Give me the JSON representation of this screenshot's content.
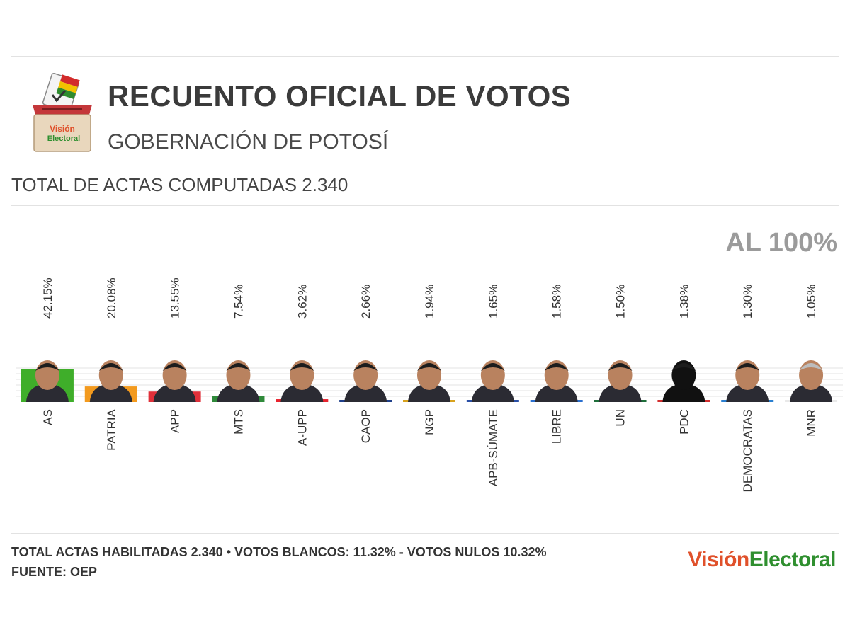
{
  "header": {
    "title": "RECUENTO OFICIAL DE VOTOS",
    "subtitle": "GOBERNACIÓN DE POTOSÍ",
    "actas": "TOTAL DE ACTAS COMPUTADAS 2.340",
    "pct_label": "AL 100%",
    "logo_text_1": "Visión",
    "logo_text_2": "Electoral"
  },
  "chart_data": {
    "type": "bar",
    "categories": [
      "AS",
      "PATRIA",
      "APP",
      "MTS",
      "A-UPP",
      "CAOP",
      "NGP",
      "APB-SÚMATE",
      "LIBRE",
      "UN",
      "PDC",
      "DEMOCRATAS",
      "MNR"
    ],
    "values": [
      42.15,
      20.08,
      13.55,
      7.54,
      3.62,
      2.66,
      1.94,
      1.65,
      1.58,
      1.5,
      1.38,
      1.3,
      1.05
    ],
    "value_labels": [
      "42.15%",
      "20.08%",
      "13.55%",
      "7.54%",
      "3.62%",
      "2.66%",
      "1.94%",
      "1.65%",
      "1.58%",
      "1.50%",
      "1.38%",
      "1.30%",
      "1.05%"
    ],
    "colors": [
      "#3fae2a",
      "#f39a1e",
      "#e0303a",
      "#2f8a3a",
      "#e8232e",
      "#1f3f8a",
      "#d8a21e",
      "#2a4fa6",
      "#2a6fcf",
      "#1f6e3a",
      "#d32f2f",
      "#2a7fd0",
      "#e9e9e9"
    ],
    "ylim": [
      0,
      45
    ],
    "grid": true
  },
  "footer": {
    "line1": "TOTAL ACTAS HABILITADAS 2.340 • VOTOS BLANCOS: 11.32% - VOTOS NULOS 10.32%",
    "line2": "FUENTE: OEP",
    "brand_1": "Visión",
    "brand_2": "Electoral"
  }
}
